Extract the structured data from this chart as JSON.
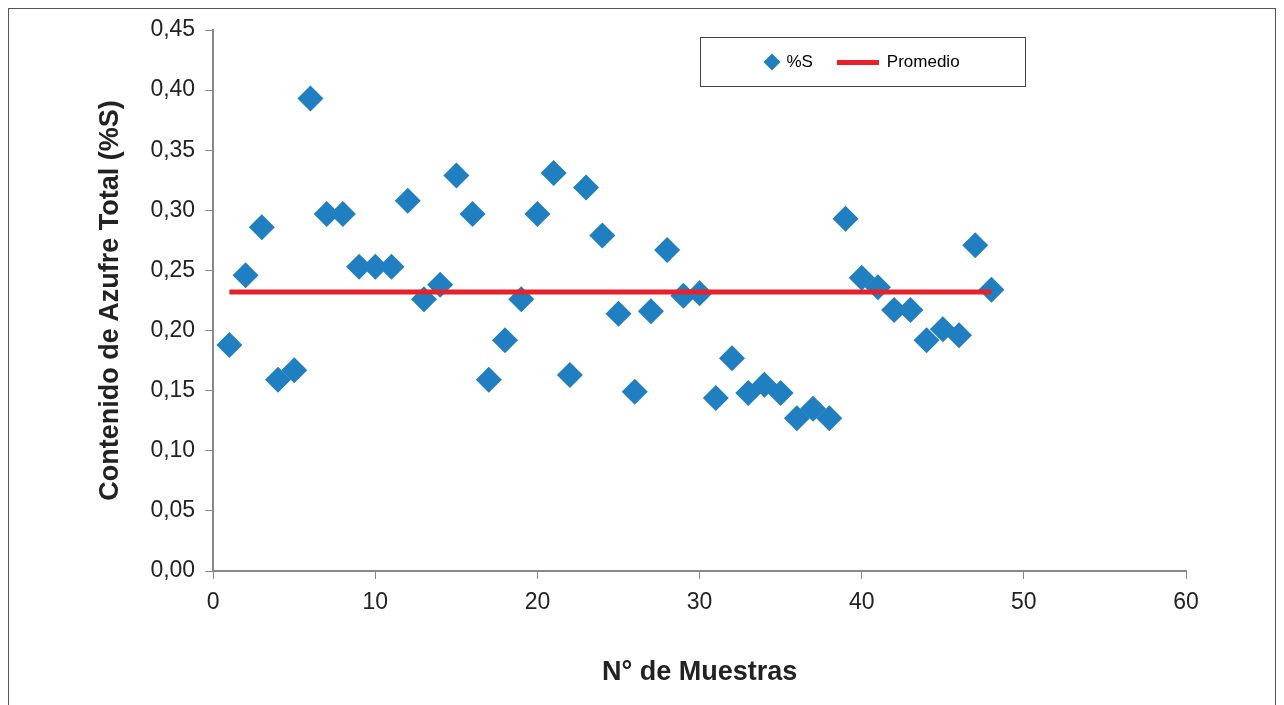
{
  "chart_data": {
    "type": "scatter",
    "xlabel": "N° de Muestras",
    "ylabel": "Contenido de Azufre Total (%S)",
    "x": [
      1,
      2,
      3,
      4,
      5,
      6,
      7,
      8,
      9,
      10,
      11,
      12,
      13,
      14,
      15,
      16,
      17,
      18,
      19,
      20,
      21,
      22,
      23,
      24,
      25,
      26,
      27,
      28,
      29,
      30,
      31,
      32,
      33,
      34,
      35,
      36,
      37,
      38,
      39,
      40,
      41,
      42,
      43,
      44,
      45,
      46,
      47,
      48
    ],
    "series": [
      {
        "name": "%S",
        "color": "#1f7fc0",
        "marker": "diamond",
        "values": [
          0.188,
          0.246,
          0.286,
          0.159,
          0.167,
          0.393,
          0.297,
          0.297,
          0.253,
          0.253,
          0.253,
          0.308,
          0.226,
          0.238,
          0.329,
          0.297,
          0.159,
          0.192,
          0.226,
          0.297,
          0.331,
          0.163,
          0.319,
          0.279,
          0.214,
          0.149,
          0.216,
          0.267,
          0.229,
          0.231,
          0.144,
          0.177,
          0.148,
          0.155,
          0.148,
          0.127,
          0.135,
          0.127,
          0.293,
          0.244,
          0.236,
          0.217,
          0.217,
          0.192,
          0.201,
          0.196,
          0.271,
          0.234
        ]
      },
      {
        "name": "Promedio",
        "type": "line",
        "color": "#e8202a",
        "marker": "none",
        "x": [
          1,
          48
        ],
        "values": [
          0.232,
          0.232
        ]
      }
    ],
    "xlim": [
      0,
      60
    ],
    "xticks": [
      0,
      10,
      20,
      30,
      40,
      50,
      60
    ],
    "ylim": [
      0,
      0.45
    ],
    "yticks": [
      {
        "value": 0,
        "label": "0,00"
      },
      {
        "value": 0.05,
        "label": "0,05"
      },
      {
        "value": 0.1,
        "label": "0,10"
      },
      {
        "value": 0.15,
        "label": "0,15"
      },
      {
        "value": 0.2,
        "label": "0,20"
      },
      {
        "value": 0.25,
        "label": "0,25"
      },
      {
        "value": 0.3,
        "label": "0,30"
      },
      {
        "value": 0.35,
        "label": "0,35"
      },
      {
        "value": 0.4,
        "label": "0,40"
      },
      {
        "value": 0.45,
        "label": "0,45"
      }
    ],
    "grid": false,
    "legend": "top right"
  }
}
